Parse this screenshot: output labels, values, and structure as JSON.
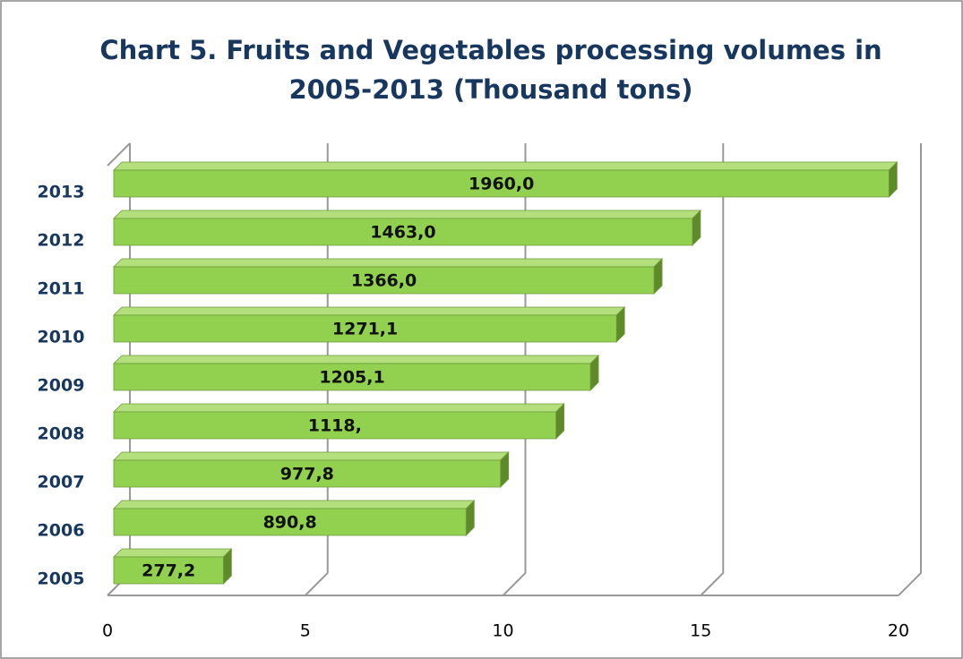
{
  "chart_data": {
    "type": "bar3d_horizontal",
    "title": [
      "Chart 5. Fruits and Vegetables processing volumes in",
      "2005-2013 (Thousand tons)"
    ],
    "categories": [
      "2005",
      "2006",
      "2007",
      "2008",
      "2009",
      "2010",
      "2011",
      "2012",
      "2013"
    ],
    "values": [
      2.772,
      8.908,
      9.778,
      11.18,
      12.051,
      12.711,
      13.66,
      14.63,
      19.6
    ],
    "value_labels": [
      "277,2",
      "890,8",
      "977,8",
      "1118,",
      "1205,1",
      "1271,1",
      "1366,0",
      "1463,0",
      "1960,0"
    ],
    "color": "#92d050",
    "xlim": [
      0,
      20
    ],
    "xticks": [
      0,
      5,
      10,
      15,
      20
    ],
    "grid": true
  }
}
